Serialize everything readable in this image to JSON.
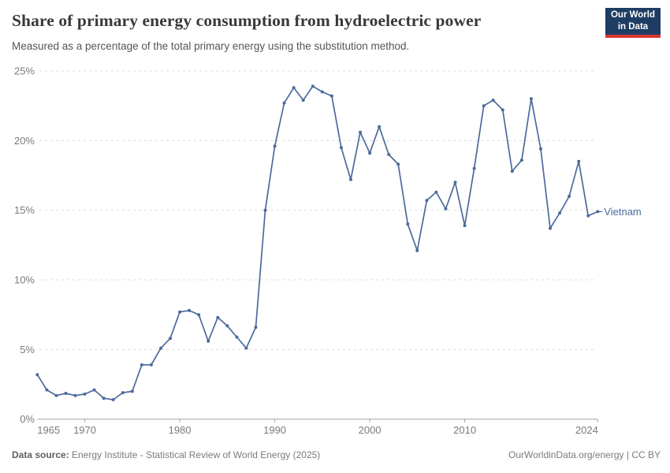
{
  "header": {
    "logo": {
      "line1": "Our World",
      "line2": "in Data"
    }
  },
  "chart_data": {
    "type": "line",
    "title": "Share of primary energy consumption from hydroelectric power",
    "subtitle": "Measured as a percentage of the total primary energy using the substitution method.",
    "xlabel": "",
    "ylabel": "",
    "ylim": [
      0,
      25
    ],
    "yticks": [
      0,
      5,
      10,
      15,
      20,
      25
    ],
    "ytick_labels": [
      "0%",
      "5%",
      "10%",
      "15%",
      "20%",
      "25%"
    ],
    "xticks": [
      1965,
      1970,
      1980,
      1990,
      2000,
      2010,
      2024
    ],
    "xtick_labels": [
      "1965",
      "1970",
      "1980",
      "1990",
      "2000",
      "2010",
      "2024"
    ],
    "grid": "horizontal-dashed",
    "legend_position": "end-of-line-label",
    "x": [
      1965,
      1966,
      1967,
      1968,
      1969,
      1970,
      1971,
      1972,
      1973,
      1974,
      1975,
      1976,
      1977,
      1978,
      1979,
      1980,
      1981,
      1982,
      1983,
      1984,
      1985,
      1986,
      1987,
      1988,
      1989,
      1990,
      1991,
      1992,
      1993,
      1994,
      1995,
      1996,
      1997,
      1998,
      1999,
      2000,
      2001,
      2002,
      2003,
      2004,
      2005,
      2006,
      2007,
      2008,
      2009,
      2010,
      2011,
      2012,
      2013,
      2014,
      2015,
      2016,
      2017,
      2018,
      2019,
      2020,
      2021,
      2022,
      2023,
      2024
    ],
    "series": [
      {
        "name": "Vietnam",
        "color": "#4c6a9c",
        "values": [
          3.2,
          2.1,
          1.7,
          1.85,
          1.7,
          1.8,
          2.1,
          1.5,
          1.4,
          1.9,
          2.0,
          3.9,
          3.9,
          5.1,
          5.8,
          7.7,
          7.8,
          7.5,
          5.6,
          7.3,
          6.7,
          5.9,
          5.1,
          6.6,
          15.0,
          19.6,
          22.7,
          23.8,
          22.9,
          23.9,
          23.5,
          23.2,
          19.5,
          17.2,
          20.6,
          19.1,
          21.0,
          19.0,
          18.3,
          14.0,
          12.1,
          15.7,
          16.3,
          15.1,
          17.0,
          13.9,
          18.0,
          22.5,
          22.9,
          22.2,
          17.8,
          18.6,
          23.0,
          19.4,
          13.7,
          14.8,
          16.0,
          18.5,
          14.6,
          14.9
        ]
      }
    ]
  },
  "footer": {
    "source_label": "Data source:",
    "source_text": " Energy Institute - Statistical Review of World Energy (2025)",
    "credit": "OurWorldinData.org/energy | CC BY"
  },
  "colors": {
    "line": "#4c6a9c",
    "grid": "#dcdcdc",
    "axis": "#a3a3a3",
    "tick_label": "#7a7a7a",
    "title": "#383838",
    "subtitle": "#555555",
    "footer": "#7b7b7b",
    "logo_bg": "#1d3d63",
    "logo_accent": "#d7382e"
  }
}
